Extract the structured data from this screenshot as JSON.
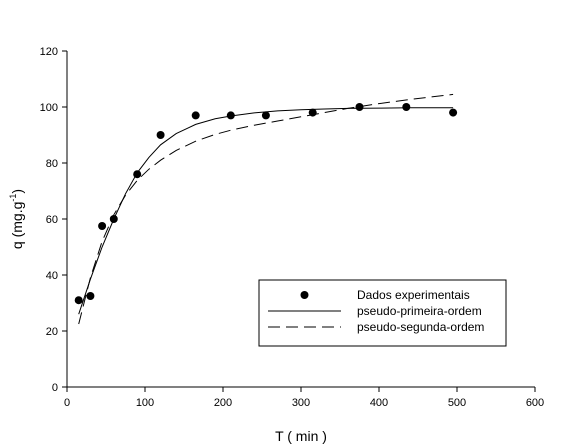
{
  "chart_data": {
    "type": "scatter",
    "xlabel": "T ( min )",
    "ylabel_base": "q (mg.g",
    "ylabel_sup": "-1",
    "ylabel_end": ")",
    "xlim": [
      0,
      600
    ],
    "ylim": [
      0,
      120
    ],
    "xticks": [
      0,
      100,
      200,
      300,
      400,
      500,
      600
    ],
    "yticks": [
      0,
      20,
      40,
      60,
      80,
      100,
      120
    ],
    "grid": false,
    "legend_position": "lower-right",
    "series": [
      {
        "name": "Dados experimentais",
        "kind": "points",
        "x": [
          15,
          30,
          45,
          60,
          90,
          120,
          165,
          210,
          255,
          315,
          375,
          435,
          495
        ],
        "y": [
          31,
          32.5,
          57.5,
          60,
          76,
          90,
          97,
          97,
          97,
          98,
          100,
          100,
          98
        ]
      },
      {
        "name": "pseudo-primeira-ordem",
        "kind": "line",
        "style": "solid",
        "x": [
          15,
          30,
          45,
          60,
          75,
          90,
          105,
          120,
          140,
          165,
          190,
          210,
          240,
          270,
          300,
          330,
          360,
          400,
          440,
          495
        ],
        "y": [
          26,
          38.5,
          50,
          60,
          69,
          76.5,
          82,
          86.5,
          90.5,
          93.8,
          95.8,
          96.8,
          97.9,
          98.6,
          99.0,
          99.3,
          99.5,
          99.6,
          99.7,
          99.7
        ]
      },
      {
        "name": "pseudo-segunda-ordem",
        "kind": "line",
        "style": "dashed",
        "x": [
          15,
          30,
          45,
          60,
          75,
          90,
          105,
          120,
          140,
          165,
          190,
          210,
          240,
          270,
          300,
          330,
          360,
          400,
          440,
          495
        ],
        "y": [
          22.5,
          39,
          52,
          61.5,
          68.5,
          73.8,
          77.8,
          81,
          84.5,
          87.8,
          90.2,
          91.7,
          93.5,
          95,
          96.5,
          98,
          99.5,
          101.2,
          102.7,
          104.5
        ]
      }
    ]
  }
}
